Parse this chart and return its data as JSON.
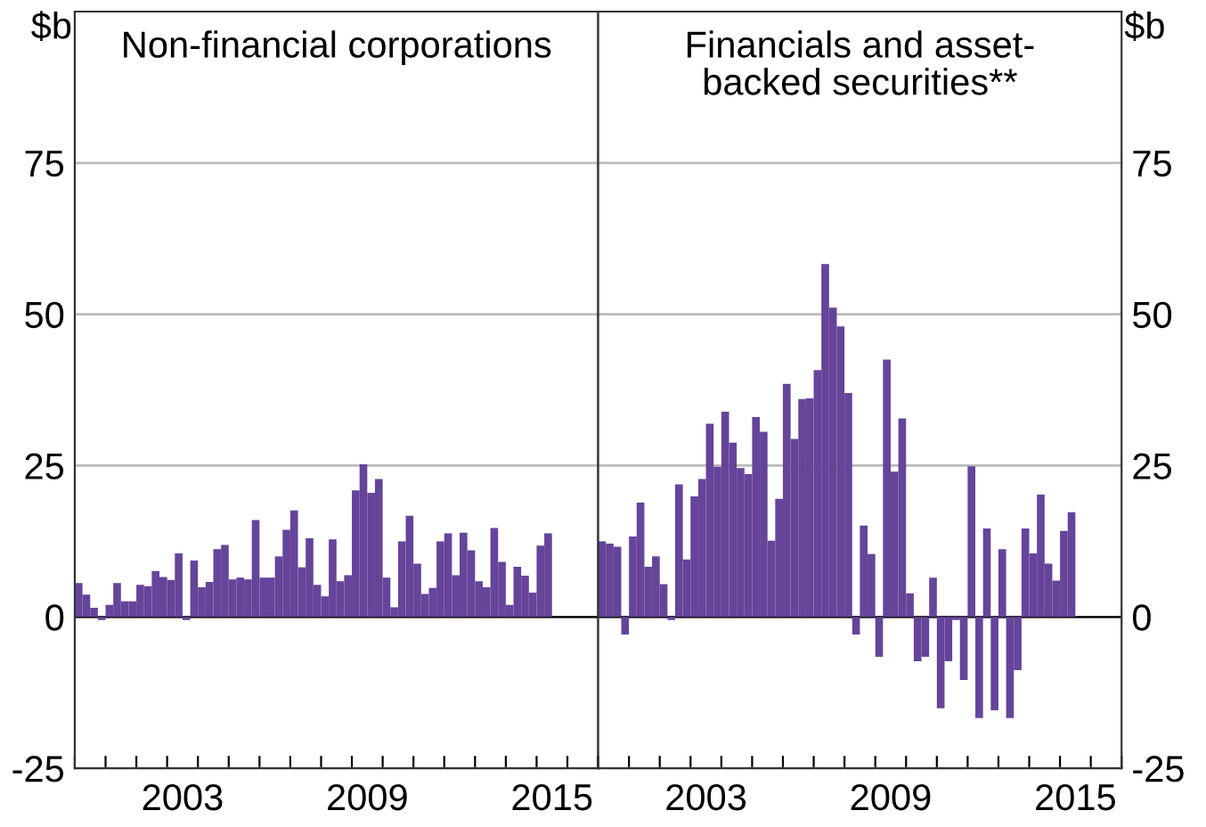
{
  "chart_data": [
    {
      "type": "bar",
      "title": "Non-financial corporations",
      "ylabel": "$b",
      "color": "#65449a",
      "x": [
        "2000-01",
        "2000-04",
        "2000-07",
        "2000-10",
        "2001-01",
        "2001-04",
        "2001-07",
        "2001-10",
        "2002-01",
        "2002-04",
        "2002-07",
        "2002-10",
        "2003-01",
        "2003-04",
        "2003-07",
        "2003-10",
        "2004-01",
        "2004-04",
        "2004-07",
        "2004-10",
        "2005-01",
        "2005-04",
        "2005-07",
        "2005-10",
        "2006-01",
        "2006-04",
        "2006-07",
        "2006-10",
        "2007-01",
        "2007-04",
        "2007-07",
        "2007-10",
        "2008-01",
        "2008-04",
        "2008-07",
        "2008-10",
        "2009-01",
        "2009-04",
        "2009-07",
        "2009-10",
        "2010-01",
        "2010-04",
        "2010-07",
        "2010-10",
        "2011-01",
        "2011-04",
        "2011-07",
        "2011-10",
        "2012-01",
        "2012-04",
        "2012-07",
        "2012-10",
        "2013-01",
        "2013-04",
        "2013-07",
        "2013-10",
        "2014-01",
        "2014-04",
        "2014-07",
        "2014-10",
        "2015-01",
        "2015-04"
      ],
      "values": [
        5.6,
        3.7,
        1.5,
        -0.5,
        2,
        5.6,
        2.6,
        2.6,
        5.3,
        5.1,
        7.6,
        6.6,
        6.1,
        10.5,
        -0.5,
        9.3,
        4.9,
        5.8,
        11.2,
        11.9,
        6.2,
        6.5,
        6.2,
        16,
        6.5,
        6.5,
        10,
        14.4,
        17.6,
        8.2,
        13,
        5.3,
        3.4,
        12.8,
        5.9,
        6.9,
        20.9,
        25.2,
        20.5,
        22.8,
        6.5,
        1.6,
        12.5,
        16.7,
        8.8,
        3.8,
        4.8,
        12.5,
        13.8,
        6.9,
        13.9,
        11,
        5.9,
        4.9,
        14.7,
        9.1,
        2,
        8.3,
        6.8,
        4,
        11.8,
        13.8
      ],
      "xlim": [
        "2000-01",
        "2017-01"
      ],
      "xticks": [
        {
          "value": "2000",
          "label": null
        },
        {
          "value": "2001",
          "label": null
        },
        {
          "value": "2002",
          "label": null
        },
        {
          "value": "2003",
          "label": null
        },
        {
          "value": "2003-07",
          "label": "2003"
        },
        {
          "value": "2004",
          "label": null
        },
        {
          "value": "2005",
          "label": null
        },
        {
          "value": "2006",
          "label": null
        },
        {
          "value": "2007",
          "label": null
        },
        {
          "value": "2008",
          "label": null
        },
        {
          "value": "2009",
          "label": null
        },
        {
          "value": "2009-07",
          "label": "2009"
        },
        {
          "value": "2010",
          "label": null
        },
        {
          "value": "2011",
          "label": null
        },
        {
          "value": "2012",
          "label": null
        },
        {
          "value": "2013",
          "label": null
        },
        {
          "value": "2014",
          "label": null
        },
        {
          "value": "2015",
          "label": null
        },
        {
          "value": "2015-07",
          "label": "2015"
        },
        {
          "value": "2016",
          "label": null
        },
        {
          "value": "2017",
          "label": null
        }
      ],
      "ylim": [
        -25,
        100
      ],
      "yticks": [
        -25,
        0,
        25,
        50,
        75
      ],
      "grid": "y"
    },
    {
      "type": "bar",
      "title": "Financials and asset-\nbacked securities**",
      "ylabel": "$b",
      "color": "#65449a",
      "x": [
        "2000-01",
        "2000-04",
        "2000-07",
        "2000-10",
        "2001-01",
        "2001-04",
        "2001-07",
        "2001-10",
        "2002-01",
        "2002-04",
        "2002-07",
        "2002-10",
        "2003-01",
        "2003-04",
        "2003-07",
        "2003-10",
        "2004-01",
        "2004-04",
        "2004-07",
        "2004-10",
        "2005-01",
        "2005-04",
        "2005-07",
        "2005-10",
        "2006-01",
        "2006-04",
        "2006-07",
        "2006-10",
        "2007-01",
        "2007-04",
        "2007-07",
        "2007-10",
        "2008-01",
        "2008-04",
        "2008-07",
        "2008-10",
        "2009-01",
        "2009-04",
        "2009-07",
        "2009-10",
        "2010-01",
        "2010-04",
        "2010-07",
        "2010-10",
        "2011-01",
        "2011-04",
        "2011-07",
        "2011-10",
        "2012-01",
        "2012-04",
        "2012-07",
        "2012-10",
        "2013-01",
        "2013-04",
        "2013-07",
        "2013-10",
        "2014-01",
        "2014-04",
        "2014-07",
        "2014-10",
        "2015-01",
        "2015-04"
      ],
      "values": [
        12.5,
        12.1,
        11.6,
        -2.9,
        13.3,
        18.9,
        8.3,
        10,
        5.4,
        -0.5,
        21.9,
        9.5,
        19.9,
        22.8,
        31.9,
        24.8,
        33.9,
        28.8,
        24.6,
        23.6,
        33,
        30.6,
        12.6,
        19.5,
        38.5,
        29.4,
        36,
        36.1,
        40.8,
        58.3,
        51.1,
        48,
        37,
        -2.9,
        15.1,
        10.4,
        -6.6,
        42.5,
        24,
        32.8,
        3.9,
        -7.3,
        -6.6,
        6.5,
        -15.1,
        -7.3,
        -0.5,
        -10.4,
        24.9,
        -16.7,
        14.6,
        -15.4,
        11.2,
        -16.7,
        -8.8,
        14.6,
        10.5,
        20.2,
        8.8,
        6,
        14.2,
        17.3
      ],
      "xlim": [
        "2000-01",
        "2017-01"
      ],
      "xticks": [
        {
          "value": "2000",
          "label": null
        },
        {
          "value": "2001",
          "label": null
        },
        {
          "value": "2002",
          "label": null
        },
        {
          "value": "2003",
          "label": null
        },
        {
          "value": "2003-07",
          "label": "2003"
        },
        {
          "value": "2004",
          "label": null
        },
        {
          "value": "2005",
          "label": null
        },
        {
          "value": "2006",
          "label": null
        },
        {
          "value": "2007",
          "label": null
        },
        {
          "value": "2008",
          "label": null
        },
        {
          "value": "2009",
          "label": null
        },
        {
          "value": "2009-07",
          "label": "2009"
        },
        {
          "value": "2010",
          "label": null
        },
        {
          "value": "2011",
          "label": null
        },
        {
          "value": "2012",
          "label": null
        },
        {
          "value": "2013",
          "label": null
        },
        {
          "value": "2014",
          "label": null
        },
        {
          "value": "2015",
          "label": null
        },
        {
          "value": "2015-07",
          "label": "2015"
        },
        {
          "value": "2016",
          "label": null
        },
        {
          "value": "2017",
          "label": null
        }
      ],
      "ylim": [
        -25,
        100
      ],
      "yticks": [
        -25,
        0,
        25,
        50,
        75
      ],
      "grid": "y"
    }
  ]
}
